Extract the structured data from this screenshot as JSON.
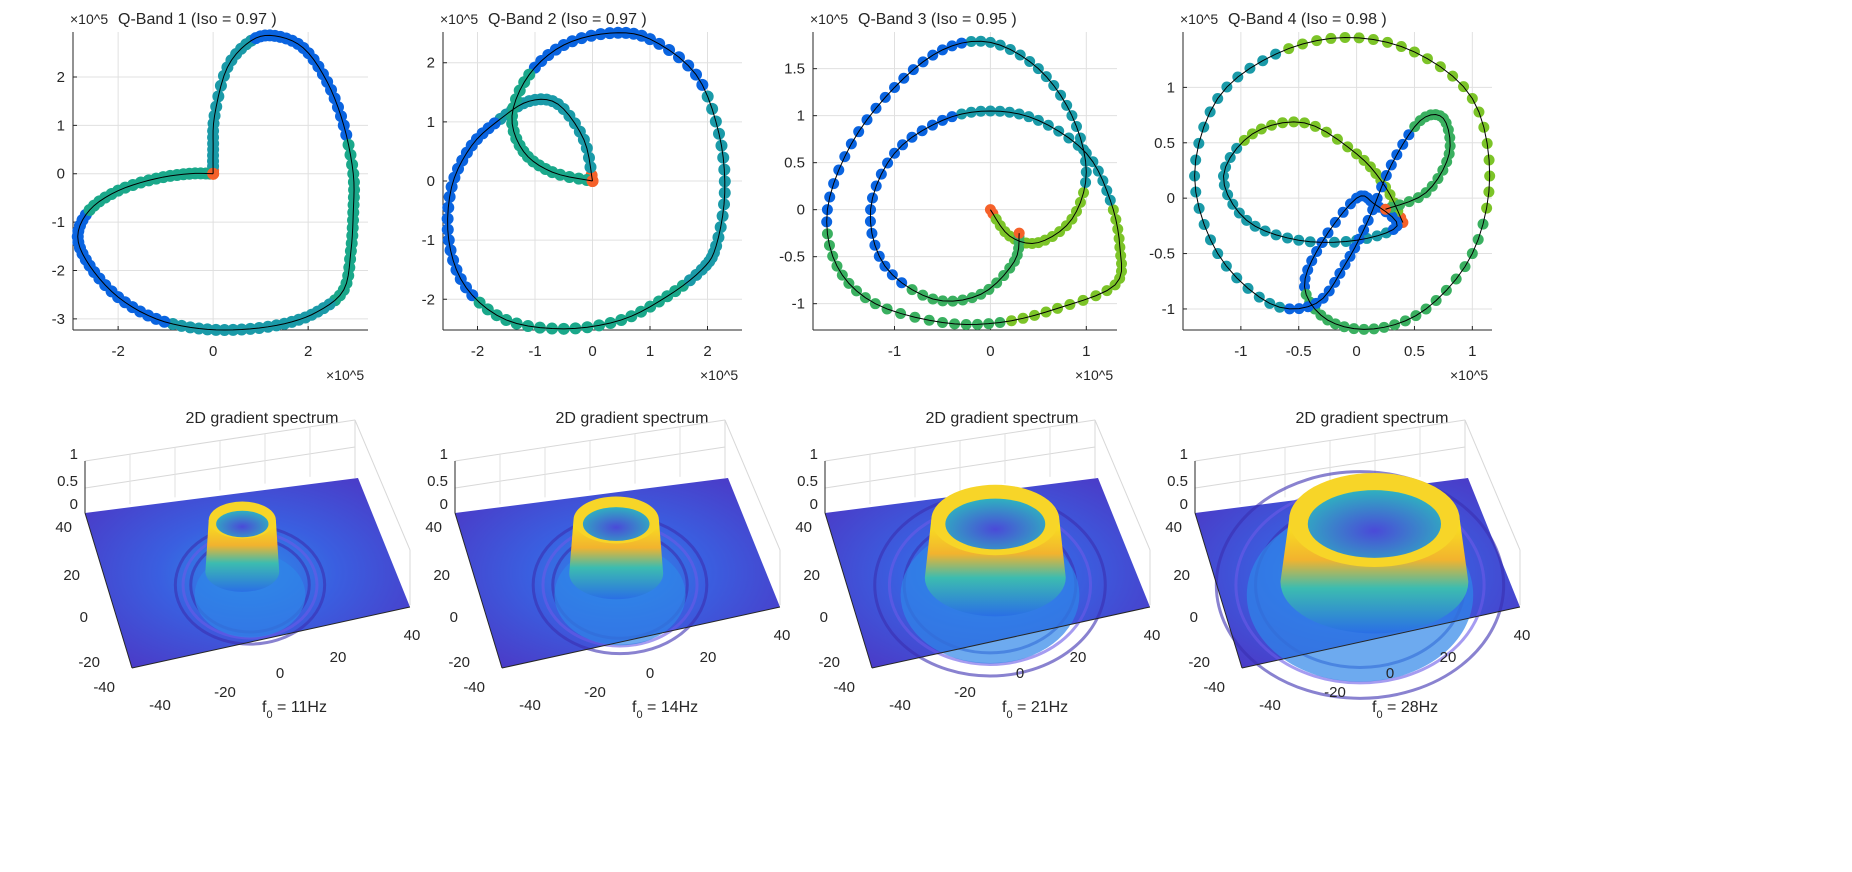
{
  "chart_data": [
    {
      "type": "scatter",
      "title": "Q-Band 1   (Iso = 0.97 )",
      "x_exponent": "×10^5",
      "y_exponent": "×10^5",
      "xlim": [
        -2.95,
        3.26
      ],
      "ylim": [
        -3.23,
        2.93
      ],
      "xticks": [
        -2,
        0,
        2
      ],
      "yticks": [
        -3,
        -2,
        -1,
        0,
        1,
        2
      ],
      "grid": true,
      "path": [
        [
          0,
          0
        ],
        [
          0,
          0.5
        ],
        [
          0.03,
          1.2
        ],
        [
          0.3,
          2.2
        ],
        [
          0.8,
          2.75
        ],
        [
          1.3,
          2.85
        ],
        [
          1.9,
          2.6
        ],
        [
          2.4,
          1.9
        ],
        [
          2.75,
          1.0
        ],
        [
          2.95,
          0
        ],
        [
          2.95,
          -0.8
        ],
        [
          2.9,
          -1.6
        ],
        [
          2.75,
          -2.4
        ],
        [
          2.2,
          -2.85
        ],
        [
          1.5,
          -3.1
        ],
        [
          0.6,
          -3.22
        ],
        [
          -0.3,
          -3.2
        ],
        [
          -1.2,
          -3.0
        ],
        [
          -2.0,
          -2.55
        ],
        [
          -2.6,
          -1.9
        ],
        [
          -2.85,
          -1.3
        ],
        [
          -2.6,
          -0.75
        ],
        [
          -2.0,
          -0.35
        ],
        [
          -1.2,
          -0.1
        ],
        [
          -0.5,
          0
        ],
        [
          0,
          0
        ]
      ]
    },
    {
      "type": "scatter",
      "title": "Q-Band 2   (Iso = 0.97 )",
      "x_exponent": "×10^5",
      "y_exponent": "×10^5",
      "xlim": [
        -2.6,
        2.6
      ],
      "ylim": [
        -2.52,
        2.52
      ],
      "xticks": [
        -2,
        -1,
        0,
        1,
        2
      ],
      "yticks": [
        -2,
        -1,
        0,
        1,
        2
      ],
      "grid": true,
      "path": [
        [
          0,
          0
        ],
        [
          -0.15,
          0.7
        ],
        [
          -0.6,
          1.3
        ],
        [
          -1.1,
          1.35
        ],
        [
          -1.6,
          1.05
        ],
        [
          -2.1,
          0.6
        ],
        [
          -2.45,
          -0.1
        ],
        [
          -2.5,
          -1.0
        ],
        [
          -2.2,
          -1.8
        ],
        [
          -1.5,
          -2.35
        ],
        [
          -0.5,
          -2.5
        ],
        [
          0.5,
          -2.35
        ],
        [
          1.3,
          -1.95
        ],
        [
          1.9,
          -1.5
        ],
        [
          2.15,
          -1.1
        ],
        [
          2.3,
          -0.2
        ],
        [
          2.2,
          0.8
        ],
        [
          1.8,
          1.8
        ],
        [
          1.0,
          2.4
        ],
        [
          0.3,
          2.5
        ],
        [
          -0.5,
          2.3
        ],
        [
          -1.1,
          1.8
        ],
        [
          -1.4,
          1.1
        ],
        [
          -1.2,
          0.5
        ],
        [
          -0.7,
          0.15
        ],
        [
          0,
          0
        ]
      ]
    },
    {
      "type": "scatter",
      "title": "Q-Band 3   (Iso = 0.95 )",
      "x_exponent": "×10^5",
      "y_exponent": "×10^5",
      "xlim": [
        -1.85,
        1.32
      ],
      "ylim": [
        -1.28,
        1.89
      ],
      "xticks": [
        -1,
        0,
        1
      ],
      "yticks": [
        -1,
        -0.5,
        0,
        0.5,
        1,
        1.5
      ],
      "grid": true,
      "path": [
        [
          0,
          0
        ],
        [
          0.2,
          -0.28
        ],
        [
          0.5,
          -0.35
        ],
        [
          0.85,
          -0.1
        ],
        [
          1.0,
          0.4
        ],
        [
          0.85,
          1.0
        ],
        [
          0.5,
          1.5
        ],
        [
          0,
          1.78
        ],
        [
          -0.5,
          1.7
        ],
        [
          -1.0,
          1.3
        ],
        [
          -1.45,
          0.7
        ],
        [
          -1.7,
          0
        ],
        [
          -1.6,
          -0.6
        ],
        [
          -1.2,
          -1.0
        ],
        [
          -0.5,
          -1.2
        ],
        [
          0.1,
          -1.2
        ],
        [
          0.7,
          -1.05
        ],
        [
          1.3,
          -0.8
        ],
        [
          1.35,
          -0.4
        ],
        [
          1.25,
          0.1
        ],
        [
          1.0,
          0.6
        ],
        [
          0.5,
          0.95
        ],
        [
          0,
          1.05
        ],
        [
          -0.5,
          0.95
        ],
        [
          -1.0,
          0.6
        ],
        [
          -1.25,
          0
        ],
        [
          -1.1,
          -0.6
        ],
        [
          -0.6,
          -0.95
        ],
        [
          -0.1,
          -0.9
        ],
        [
          0.25,
          -0.55
        ],
        [
          0.3,
          -0.25
        ]
      ]
    },
    {
      "type": "scatter",
      "title": "Q-Band 4   (Iso = 0.98 )",
      "x_exponent": "×10^5",
      "y_exponent": "×10^5",
      "xlim": [
        -1.5,
        1.17
      ],
      "ylim": [
        -1.19,
        1.5
      ],
      "xticks": [
        -1,
        -0.5,
        0,
        0.5,
        1
      ],
      "yticks": [
        -1,
        -0.5,
        0,
        0.5,
        1
      ],
      "grid": true,
      "path": [
        [
          0.4,
          -0.22
        ],
        [
          0.25,
          0.1
        ],
        [
          0,
          0.4
        ],
        [
          -0.45,
          0.68
        ],
        [
          -0.9,
          0.58
        ],
        [
          -1.15,
          0.2
        ],
        [
          -0.95,
          -0.2
        ],
        [
          -0.5,
          -0.38
        ],
        [
          0,
          -0.38
        ],
        [
          0.35,
          -0.25
        ],
        [
          0.15,
          -0.05
        ],
        [
          0,
          0
        ],
        [
          -0.3,
          -0.4
        ],
        [
          -0.45,
          -0.8
        ],
        [
          -0.25,
          -1.1
        ],
        [
          0.15,
          -1.18
        ],
        [
          0.6,
          -1.0
        ],
        [
          1.0,
          -0.5
        ],
        [
          1.15,
          0.2
        ],
        [
          1.0,
          0.9
        ],
        [
          0.5,
          1.32
        ],
        [
          -0.1,
          1.45
        ],
        [
          -0.7,
          1.3
        ],
        [
          -1.2,
          0.9
        ],
        [
          -1.4,
          0.2
        ],
        [
          -1.2,
          -0.5
        ],
        [
          -0.75,
          -0.95
        ],
        [
          -0.35,
          -0.95
        ],
        [
          -0.1,
          -0.6
        ],
        [
          0.1,
          -0.2
        ],
        [
          0.3,
          0.3
        ],
        [
          0.55,
          0.7
        ],
        [
          0.75,
          0.72
        ],
        [
          0.8,
          0.4
        ],
        [
          0.6,
          0.05
        ],
        [
          0.25,
          -0.1
        ]
      ]
    },
    {
      "type": "surface",
      "title": "2D gradient spectrum",
      "zticks": [
        "0",
        "0.5",
        "1"
      ],
      "yticks": [
        "-40",
        "-20",
        "0",
        "20",
        "40"
      ],
      "xticks": [
        "-40",
        "-20",
        "0",
        "20",
        "40"
      ],
      "xlabel_main": "f",
      "xlabel_sub": "0",
      "xlabel_rest": " = 11Hz",
      "f0": 11
    },
    {
      "type": "surface",
      "title": "2D gradient spectrum",
      "zticks": [
        "0",
        "0.5",
        "1"
      ],
      "yticks": [
        "-40",
        "-20",
        "0",
        "20",
        "40"
      ],
      "xticks": [
        "-40",
        "-20",
        "0",
        "20",
        "40"
      ],
      "xlabel_main": "f",
      "xlabel_sub": "0",
      "xlabel_rest": " = 14Hz",
      "f0": 14
    },
    {
      "type": "surface",
      "title": "2D gradient spectrum",
      "zticks": [
        "0",
        "0.5",
        "1"
      ],
      "yticks": [
        "-40",
        "-20",
        "0",
        "20",
        "40"
      ],
      "xticks": [
        "-40",
        "-20",
        "0",
        "20",
        "40"
      ],
      "xlabel_main": "f",
      "xlabel_sub": "0",
      "xlabel_rest": " = 21Hz",
      "f0": 21
    },
    {
      "type": "surface",
      "title": "2D gradient spectrum",
      "zticks": [
        "0",
        "0.5",
        "1"
      ],
      "yticks": [
        "-40",
        "-20",
        "0",
        "20",
        "40"
      ],
      "xticks": [
        "-40",
        "-20",
        "0",
        "20",
        "40"
      ],
      "xlabel_main": "f",
      "xlabel_sub": "0",
      "xlabel_rest": " = 28Hz",
      "f0": 28
    }
  ],
  "colors": {
    "marker_main": "#1a9aa8",
    "marker_blue": "#0a64e0",
    "marker_end": "#f5612a",
    "marker_green": "#7cc428",
    "line": "#000000",
    "grid": "#e0e0e0",
    "surface_low": "#4b3ccf",
    "surface_high": "#f9e51f"
  }
}
